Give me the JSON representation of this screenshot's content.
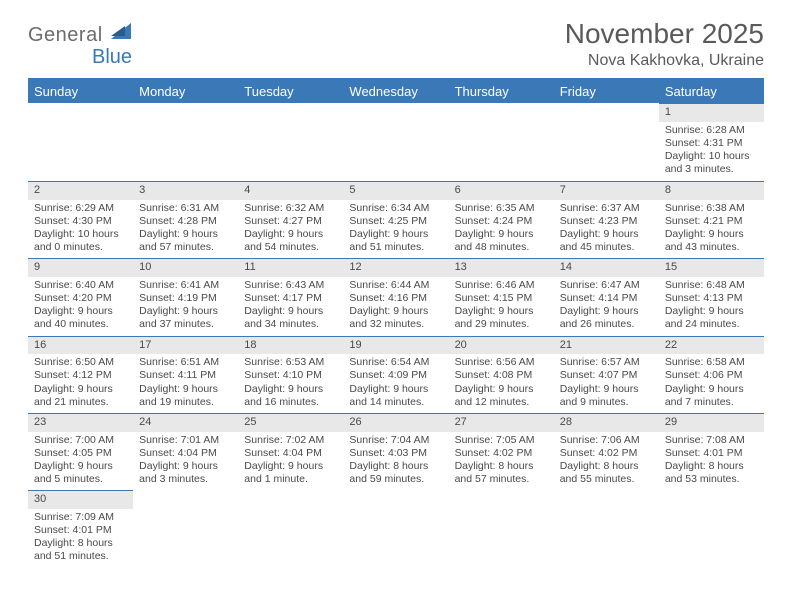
{
  "logo": {
    "word1": "General",
    "word2": "Blue"
  },
  "title": "November 2025",
  "location": "Nova Kakhovka, Ukraine",
  "colors": {
    "header_bg": "#3a78b8",
    "header_fg": "#ffffff",
    "daynum_bg": "#e8e8e8",
    "rule": "#3a78b8",
    "text": "#4a4a4a",
    "title_fg": "#5a5a5a",
    "logo_gray": "#6c6c6c",
    "logo_blue": "#3a78b8",
    "page_bg": "#ffffff"
  },
  "columns": [
    "Sunday",
    "Monday",
    "Tuesday",
    "Wednesday",
    "Thursday",
    "Friday",
    "Saturday"
  ],
  "weeks": [
    [
      null,
      null,
      null,
      null,
      null,
      null,
      {
        "n": "1",
        "sr": "Sunrise: 6:28 AM",
        "ss": "Sunset: 4:31 PM",
        "d1": "Daylight: 10 hours",
        "d2": "and 3 minutes."
      }
    ],
    [
      {
        "n": "2",
        "sr": "Sunrise: 6:29 AM",
        "ss": "Sunset: 4:30 PM",
        "d1": "Daylight: 10 hours",
        "d2": "and 0 minutes."
      },
      {
        "n": "3",
        "sr": "Sunrise: 6:31 AM",
        "ss": "Sunset: 4:28 PM",
        "d1": "Daylight: 9 hours",
        "d2": "and 57 minutes."
      },
      {
        "n": "4",
        "sr": "Sunrise: 6:32 AM",
        "ss": "Sunset: 4:27 PM",
        "d1": "Daylight: 9 hours",
        "d2": "and 54 minutes."
      },
      {
        "n": "5",
        "sr": "Sunrise: 6:34 AM",
        "ss": "Sunset: 4:25 PM",
        "d1": "Daylight: 9 hours",
        "d2": "and 51 minutes."
      },
      {
        "n": "6",
        "sr": "Sunrise: 6:35 AM",
        "ss": "Sunset: 4:24 PM",
        "d1": "Daylight: 9 hours",
        "d2": "and 48 minutes."
      },
      {
        "n": "7",
        "sr": "Sunrise: 6:37 AM",
        "ss": "Sunset: 4:23 PM",
        "d1": "Daylight: 9 hours",
        "d2": "and 45 minutes."
      },
      {
        "n": "8",
        "sr": "Sunrise: 6:38 AM",
        "ss": "Sunset: 4:21 PM",
        "d1": "Daylight: 9 hours",
        "d2": "and 43 minutes."
      }
    ],
    [
      {
        "n": "9",
        "sr": "Sunrise: 6:40 AM",
        "ss": "Sunset: 4:20 PM",
        "d1": "Daylight: 9 hours",
        "d2": "and 40 minutes."
      },
      {
        "n": "10",
        "sr": "Sunrise: 6:41 AM",
        "ss": "Sunset: 4:19 PM",
        "d1": "Daylight: 9 hours",
        "d2": "and 37 minutes."
      },
      {
        "n": "11",
        "sr": "Sunrise: 6:43 AM",
        "ss": "Sunset: 4:17 PM",
        "d1": "Daylight: 9 hours",
        "d2": "and 34 minutes."
      },
      {
        "n": "12",
        "sr": "Sunrise: 6:44 AM",
        "ss": "Sunset: 4:16 PM",
        "d1": "Daylight: 9 hours",
        "d2": "and 32 minutes."
      },
      {
        "n": "13",
        "sr": "Sunrise: 6:46 AM",
        "ss": "Sunset: 4:15 PM",
        "d1": "Daylight: 9 hours",
        "d2": "and 29 minutes."
      },
      {
        "n": "14",
        "sr": "Sunrise: 6:47 AM",
        "ss": "Sunset: 4:14 PM",
        "d1": "Daylight: 9 hours",
        "d2": "and 26 minutes."
      },
      {
        "n": "15",
        "sr": "Sunrise: 6:48 AM",
        "ss": "Sunset: 4:13 PM",
        "d1": "Daylight: 9 hours",
        "d2": "and 24 minutes."
      }
    ],
    [
      {
        "n": "16",
        "sr": "Sunrise: 6:50 AM",
        "ss": "Sunset: 4:12 PM",
        "d1": "Daylight: 9 hours",
        "d2": "and 21 minutes."
      },
      {
        "n": "17",
        "sr": "Sunrise: 6:51 AM",
        "ss": "Sunset: 4:11 PM",
        "d1": "Daylight: 9 hours",
        "d2": "and 19 minutes."
      },
      {
        "n": "18",
        "sr": "Sunrise: 6:53 AM",
        "ss": "Sunset: 4:10 PM",
        "d1": "Daylight: 9 hours",
        "d2": "and 16 minutes."
      },
      {
        "n": "19",
        "sr": "Sunrise: 6:54 AM",
        "ss": "Sunset: 4:09 PM",
        "d1": "Daylight: 9 hours",
        "d2": "and 14 minutes."
      },
      {
        "n": "20",
        "sr": "Sunrise: 6:56 AM",
        "ss": "Sunset: 4:08 PM",
        "d1": "Daylight: 9 hours",
        "d2": "and 12 minutes."
      },
      {
        "n": "21",
        "sr": "Sunrise: 6:57 AM",
        "ss": "Sunset: 4:07 PM",
        "d1": "Daylight: 9 hours",
        "d2": "and 9 minutes."
      },
      {
        "n": "22",
        "sr": "Sunrise: 6:58 AM",
        "ss": "Sunset: 4:06 PM",
        "d1": "Daylight: 9 hours",
        "d2": "and 7 minutes."
      }
    ],
    [
      {
        "n": "23",
        "sr": "Sunrise: 7:00 AM",
        "ss": "Sunset: 4:05 PM",
        "d1": "Daylight: 9 hours",
        "d2": "and 5 minutes."
      },
      {
        "n": "24",
        "sr": "Sunrise: 7:01 AM",
        "ss": "Sunset: 4:04 PM",
        "d1": "Daylight: 9 hours",
        "d2": "and 3 minutes."
      },
      {
        "n": "25",
        "sr": "Sunrise: 7:02 AM",
        "ss": "Sunset: 4:04 PM",
        "d1": "Daylight: 9 hours",
        "d2": "and 1 minute."
      },
      {
        "n": "26",
        "sr": "Sunrise: 7:04 AM",
        "ss": "Sunset: 4:03 PM",
        "d1": "Daylight: 8 hours",
        "d2": "and 59 minutes."
      },
      {
        "n": "27",
        "sr": "Sunrise: 7:05 AM",
        "ss": "Sunset: 4:02 PM",
        "d1": "Daylight: 8 hours",
        "d2": "and 57 minutes."
      },
      {
        "n": "28",
        "sr": "Sunrise: 7:06 AM",
        "ss": "Sunset: 4:02 PM",
        "d1": "Daylight: 8 hours",
        "d2": "and 55 minutes."
      },
      {
        "n": "29",
        "sr": "Sunrise: 7:08 AM",
        "ss": "Sunset: 4:01 PM",
        "d1": "Daylight: 8 hours",
        "d2": "and 53 minutes."
      }
    ],
    [
      {
        "n": "30",
        "sr": "Sunrise: 7:09 AM",
        "ss": "Sunset: 4:01 PM",
        "d1": "Daylight: 8 hours",
        "d2": "and 51 minutes."
      },
      null,
      null,
      null,
      null,
      null,
      null
    ]
  ]
}
